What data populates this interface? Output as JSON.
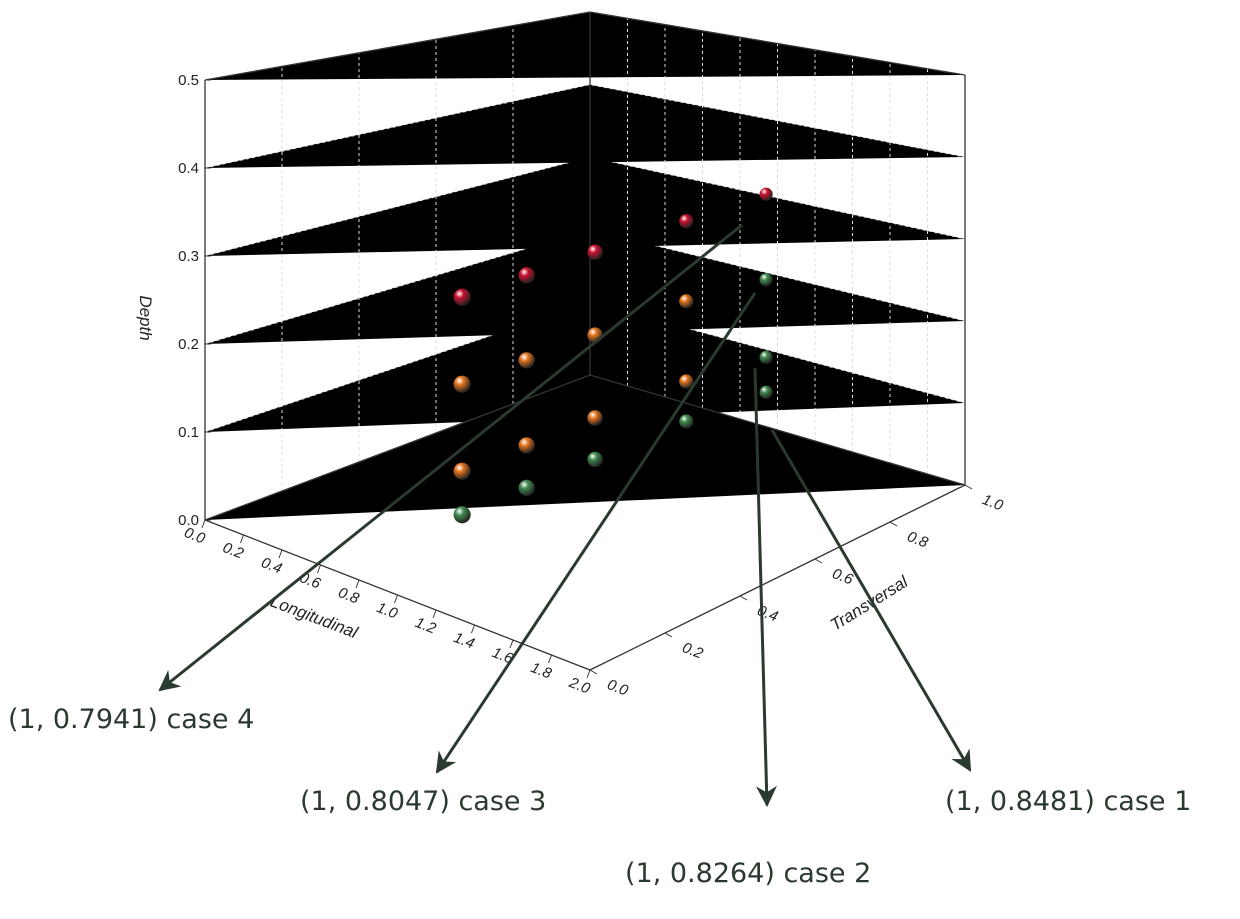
{
  "chart_data": {
    "type": "scatter3d",
    "x_label": "Longitudinal",
    "y_label": "Transversal",
    "z_label": "Depth",
    "xlim": [
      0,
      2
    ],
    "xticks": [
      {
        "value": 0,
        "label": "0.0"
      },
      0.2,
      0.4,
      0.6,
      0.8,
      {
        "value": 1,
        "label": "1.0"
      },
      1.2,
      1.4,
      1.6,
      1.8,
      {
        "value": 2,
        "label": "2.0"
      }
    ],
    "ylim": [
      0,
      1
    ],
    "yticks": [
      {
        "value": 0,
        "label": "0.0"
      },
      0.2,
      0.4,
      0.6,
      0.8,
      {
        "value": 1,
        "label": "1.0"
      }
    ],
    "zlim": [
      0,
      0.5
    ],
    "zticks": [
      {
        "value": 0,
        "label": "0.0"
      },
      0.1,
      0.2,
      0.3,
      0.4,
      0.5
    ],
    "series": [
      {
        "color": "#c8102e",
        "x": [
          1,
          1,
          1,
          1,
          1
        ],
        "y": [
          0.17,
          0.34,
          0.52,
          0.76,
          0.97
        ],
        "values": [
          0.31,
          0.31,
          0.31,
          0.31,
          0.31
        ]
      },
      {
        "color": "#e2741e",
        "x": [
          1,
          1,
          1,
          1,
          1,
          1,
          1,
          1
        ],
        "y": [
          0.17,
          0.34,
          0.52,
          0.76,
          0.17,
          0.34,
          0.52,
          0.76
        ],
        "values": [
          0.21,
          0.21,
          0.21,
          0.21,
          0.11,
          0.11,
          0.11,
          0.11
        ]
      },
      {
        "color": "#3f8a4e",
        "x": [
          1,
          1,
          1,
          1,
          1,
          1,
          1
        ],
        "y": [
          0.17,
          0.34,
          0.52,
          0.76,
          0.97,
          0.97,
          0.97
        ],
        "values": [
          0.06,
          0.06,
          0.06,
          0.06,
          0.2,
          0.1,
          0.055
        ]
      }
    ],
    "annotations": [
      "(1, 0.8481) case 1",
      "(1, 0.8264) case 2",
      "(1, 0.8047) case 3",
      "(1, 0.7941) case 4"
    ]
  }
}
